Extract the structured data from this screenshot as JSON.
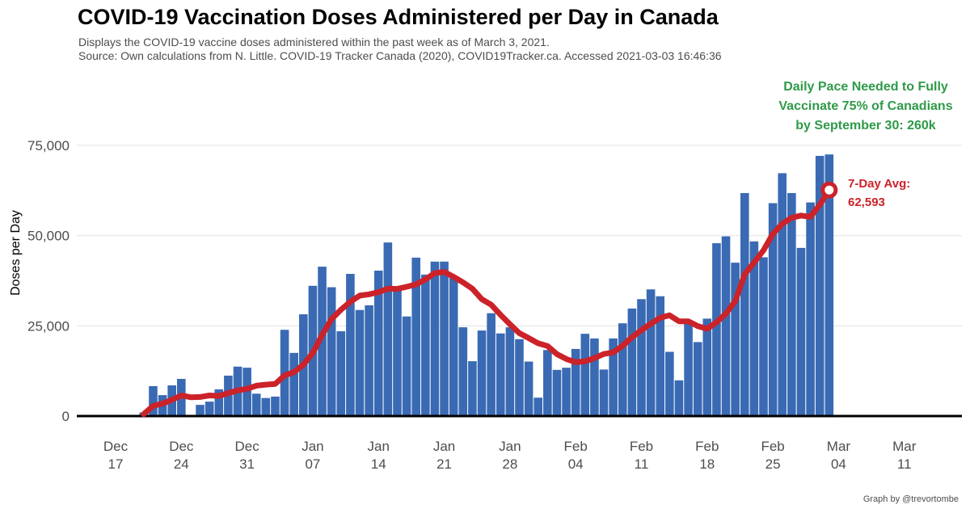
{
  "header": {
    "title": "COVID-19 Vaccination Doses Administered per Day in Canada",
    "subtitle_1": "Displays the COVID-19 vaccine doses administered within the past week as of March 3, 2021.",
    "subtitle_2": "Source: Own calculations from N. Little. COVID-19 Tracker Canada (2020), COVID19Tracker.ca. Accessed 2021-03-03 16:46:36"
  },
  "credit": "Graph by @trevortombe",
  "colors": {
    "bar": "#3a6ab3",
    "avg_line": "#cc2229",
    "target_text": "#2e9a48",
    "grid": "#ebebeb"
  },
  "chart_data": {
    "type": "bar",
    "title": "COVID-19 Vaccination Doses Administered per Day in Canada",
    "xlabel": "",
    "ylabel": "Doses per Day",
    "ylim": [
      0,
      75000
    ],
    "xlim": [
      "2020-12-17",
      "2021-03-11"
    ],
    "grid": true,
    "yticks": [
      0,
      25000,
      50000,
      75000
    ],
    "ytick_labels": [
      "0",
      "25,000",
      "50,000",
      "75,000"
    ],
    "xticks": [
      {
        "date": "2020-12-17",
        "m": "Dec",
        "d": "17"
      },
      {
        "date": "2020-12-24",
        "m": "Dec",
        "d": "24"
      },
      {
        "date": "2020-12-31",
        "m": "Dec",
        "d": "31"
      },
      {
        "date": "2021-01-07",
        "m": "Jan",
        "d": "07"
      },
      {
        "date": "2021-01-14",
        "m": "Jan",
        "d": "14"
      },
      {
        "date": "2021-01-21",
        "m": "Jan",
        "d": "21"
      },
      {
        "date": "2021-01-28",
        "m": "Jan",
        "d": "28"
      },
      {
        "date": "2021-02-04",
        "m": "Feb",
        "d": "04"
      },
      {
        "date": "2021-02-11",
        "m": "Feb",
        "d": "11"
      },
      {
        "date": "2021-02-18",
        "m": "Feb",
        "d": "18"
      },
      {
        "date": "2021-02-25",
        "m": "Feb",
        "d": "25"
      },
      {
        "date": "2021-03-04",
        "m": "Mar",
        "d": "04"
      },
      {
        "date": "2021-03-11",
        "m": "Mar",
        "d": "11"
      }
    ],
    "start_date": "2020-12-20",
    "series": [
      {
        "name": "Daily doses",
        "type": "bar",
        "values": [
          1000,
          8300,
          5800,
          8500,
          10300,
          0,
          3100,
          4000,
          7400,
          11200,
          13700,
          13400,
          6200,
          5000,
          5400,
          23900,
          17500,
          28200,
          36100,
          41400,
          35700,
          23500,
          39400,
          29400,
          30700,
          40300,
          48100,
          35300,
          27600,
          43900,
          39200,
          42800,
          42800,
          38500,
          24600,
          15200,
          23700,
          28500,
          22900,
          24600,
          21300,
          15100,
          5100,
          18300,
          12800,
          13400,
          18600,
          22800,
          21500,
          12900,
          21500,
          25700,
          29800,
          32400,
          35100,
          33200,
          17800,
          9900,
          25700,
          20500,
          27000,
          47900,
          49800,
          42500,
          61800,
          48400,
          44000,
          59000,
          67300,
          61800,
          46600,
          59200,
          72100,
          72500
        ]
      },
      {
        "name": "7-Day Avg",
        "type": "line",
        "window": 7
      }
    ],
    "annotations": {
      "avg_label": "7-Day Avg:",
      "avg_value": "62,593",
      "target_line_1": "Daily Pace Needed to Fully",
      "target_line_2": "Vaccinate 75% of Canadians",
      "target_line_3": "by September 30: 260k"
    }
  }
}
